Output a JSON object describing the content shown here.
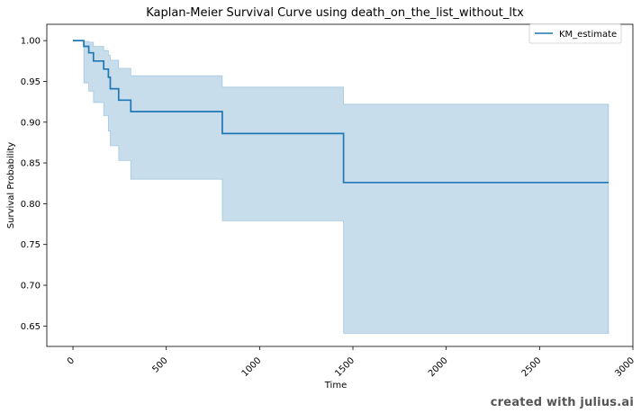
{
  "chart_data": {
    "type": "line",
    "title": "Kaplan-Meier Survival Curve using death_on_the_list_without_ltx",
    "xlabel": "Time",
    "ylabel": "Survival Probability",
    "xlim": [
      -140,
      3000
    ],
    "ylim": [
      0.625,
      1.02
    ],
    "x_ticks": [
      0,
      500,
      1000,
      1500,
      2000,
      2500,
      3000
    ],
    "y_ticks": [
      0.65,
      0.7,
      0.75,
      0.8,
      0.85,
      0.9,
      0.95,
      1.0
    ],
    "legend": {
      "position": "top-right",
      "entries": [
        "KM_estimate"
      ]
    },
    "grid": false,
    "colors": {
      "line": "#1f77b4",
      "band": "#1f77b4"
    },
    "series": [
      {
        "name": "KM_estimate",
        "step": "post",
        "points": [
          {
            "x": 0,
            "y": 1.0,
            "lo": 1.0,
            "hi": 1.0
          },
          {
            "x": 58,
            "y": 0.993,
            "lo": 0.948,
            "hi": 0.999
          },
          {
            "x": 85,
            "y": 0.985,
            "lo": 0.938,
            "hi": 0.998
          },
          {
            "x": 110,
            "y": 0.975,
            "lo": 0.924,
            "hi": 0.993
          },
          {
            "x": 165,
            "y": 0.965,
            "lo": 0.908,
            "hi": 0.988
          },
          {
            "x": 190,
            "y": 0.955,
            "lo": 0.889,
            "hi": 0.982
          },
          {
            "x": 200,
            "y": 0.941,
            "lo": 0.871,
            "hi": 0.976
          },
          {
            "x": 245,
            "y": 0.927,
            "lo": 0.853,
            "hi": 0.966
          },
          {
            "x": 310,
            "y": 0.913,
            "lo": 0.83,
            "hi": 0.957
          },
          {
            "x": 800,
            "y": 0.886,
            "lo": 0.779,
            "hi": 0.943
          },
          {
            "x": 1450,
            "y": 0.826,
            "lo": 0.641,
            "hi": 0.922
          },
          {
            "x": 2870,
            "y": 0.826,
            "lo": 0.641,
            "hi": 0.922
          }
        ]
      }
    ]
  },
  "watermark": "created with julius.ai"
}
